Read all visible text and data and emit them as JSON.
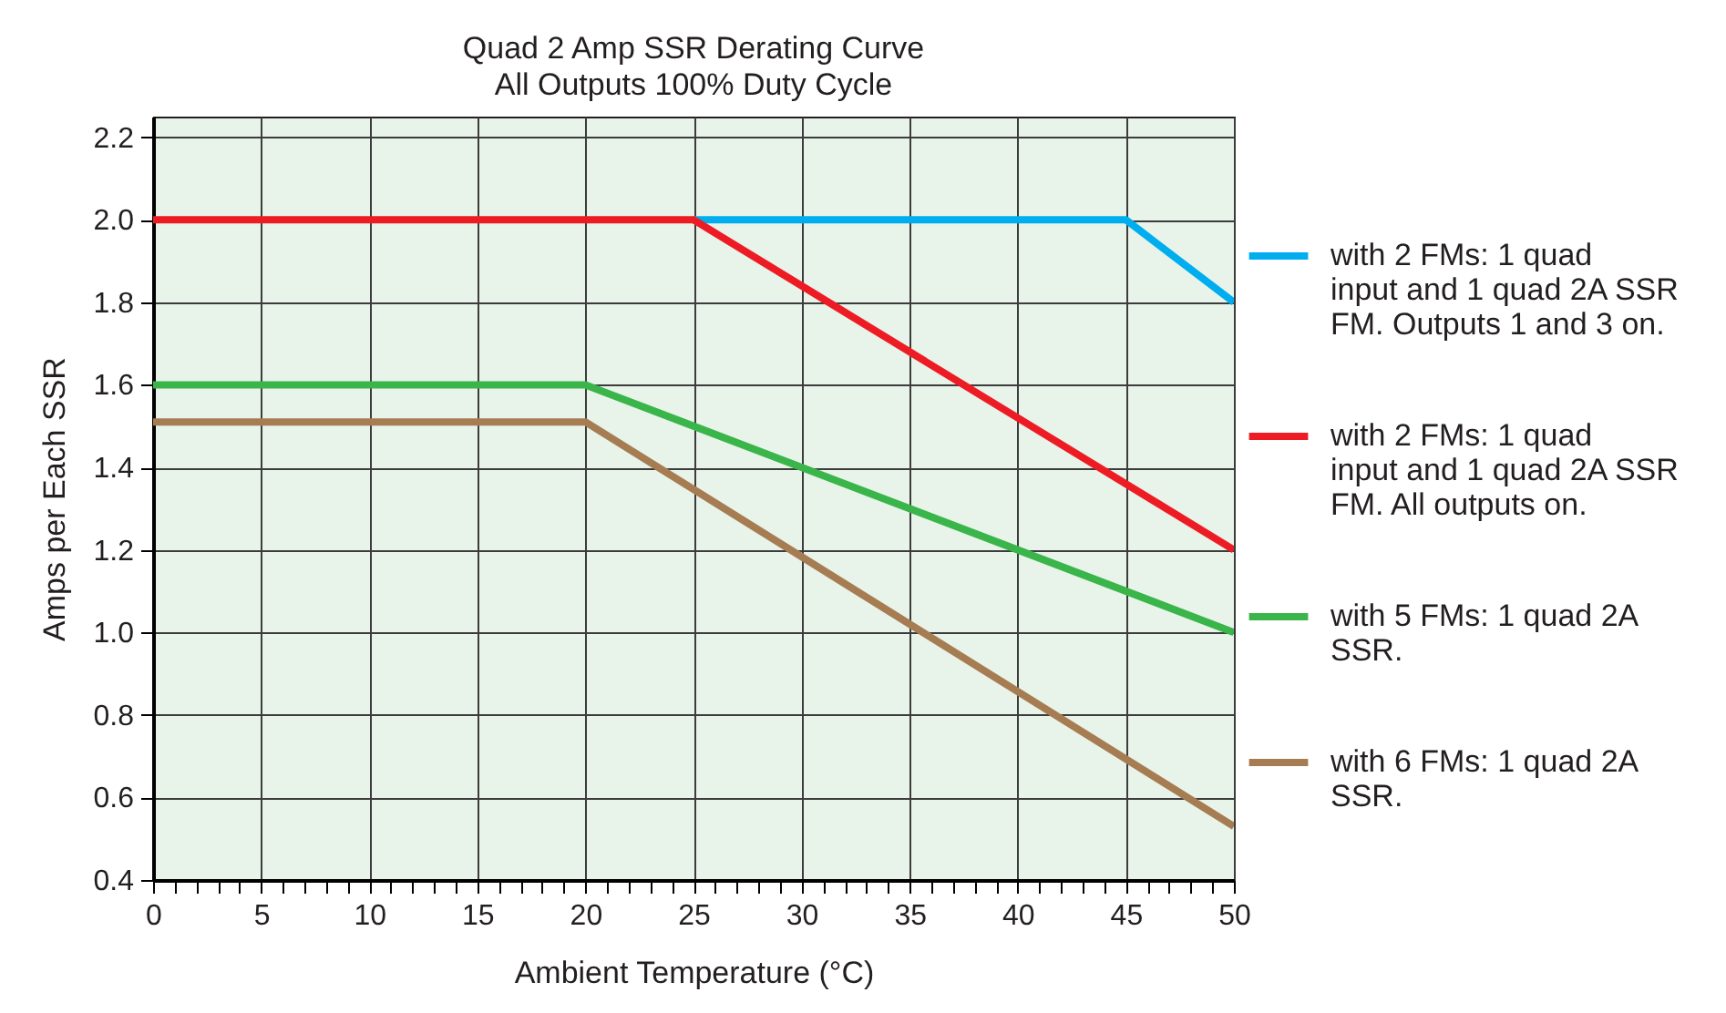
{
  "chart_data": {
    "type": "line",
    "title": "Quad 2 Amp SSR Derating Curve",
    "subtitle": "All Outputs 100% Duty Cycle",
    "xlabel": "Ambient Temperature (°C)",
    "ylabel": "Amps per Each SSR",
    "series": [
      {
        "name": "with 2 FMs: 1 quad input and 1 quad 2A SSR FM. Outputs 1 and 3 on.",
        "color": "#00aeef",
        "x": [
          25,
          45,
          50
        ],
        "values": [
          2.0,
          2.0,
          1.8
        ]
      },
      {
        "name": "with 2 FMs: 1 quad input and 1 quad 2A SSR FM. All outputs on.",
        "color": "#ed1c24",
        "x": [
          0,
          25,
          50
        ],
        "values": [
          2.0,
          2.0,
          1.2
        ]
      },
      {
        "name": "with 5 FMs: 1 quad 2A SSR.",
        "color": "#39b54a",
        "x": [
          0,
          20,
          50
        ],
        "values": [
          1.6,
          1.6,
          1.0
        ]
      },
      {
        "name": "with 6 FMs: 1 quad 2A SSR.",
        "color": "#a67c52",
        "x": [
          0,
          20,
          50
        ],
        "values": [
          1.51,
          1.51,
          0.53
        ]
      }
    ],
    "xlim": [
      0,
      50
    ],
    "ylim": [
      0.4,
      2.25
    ],
    "xticks": [
      0,
      {
        "value": 1,
        "label": null
      },
      {
        "value": 2,
        "label": null
      },
      {
        "value": 3,
        "label": null
      },
      {
        "value": 4,
        "label": null
      },
      5,
      {
        "value": 6,
        "label": null
      },
      {
        "value": 7,
        "label": null
      },
      {
        "value": 8,
        "label": null
      },
      {
        "value": 9,
        "label": null
      },
      10,
      {
        "value": 11,
        "label": null
      },
      {
        "value": 12,
        "label": null
      },
      {
        "value": 13,
        "label": null
      },
      {
        "value": 14,
        "label": null
      },
      15,
      {
        "value": 16,
        "label": null
      },
      {
        "value": 17,
        "label": null
      },
      {
        "value": 18,
        "label": null
      },
      {
        "value": 19,
        "label": null
      },
      20,
      {
        "value": 21,
        "label": null
      },
      {
        "value": 22,
        "label": null
      },
      {
        "value": 23,
        "label": null
      },
      {
        "value": 24,
        "label": null
      },
      25,
      {
        "value": 26,
        "label": null
      },
      {
        "value": 27,
        "label": null
      },
      {
        "value": 28,
        "label": null
      },
      {
        "value": 29,
        "label": null
      },
      30,
      {
        "value": 31,
        "label": null
      },
      {
        "value": 32,
        "label": null
      },
      {
        "value": 33,
        "label": null
      },
      {
        "value": 34,
        "label": null
      },
      35,
      {
        "value": 36,
        "label": null
      },
      {
        "value": 37,
        "label": null
      },
      {
        "value": 38,
        "label": null
      },
      {
        "value": 39,
        "label": null
      },
      40,
      {
        "value": 41,
        "label": null
      },
      {
        "value": 42,
        "label": null
      },
      {
        "value": 43,
        "label": null
      },
      {
        "value": 44,
        "label": null
      },
      45,
      {
        "value": 46,
        "label": null
      },
      {
        "value": 47,
        "label": null
      },
      {
        "value": 48,
        "label": null
      },
      {
        "value": 49,
        "label": null
      },
      50
    ],
    "yticks": [
      0.4,
      0.6,
      0.8,
      {
        "value": 1,
        "label": "1.0"
      },
      1.2,
      1.4,
      1.6,
      1.8,
      {
        "value": 2,
        "label": "2.0"
      },
      2.2
    ],
    "grid": true,
    "legend": "right",
    "line_style": "solid"
  }
}
